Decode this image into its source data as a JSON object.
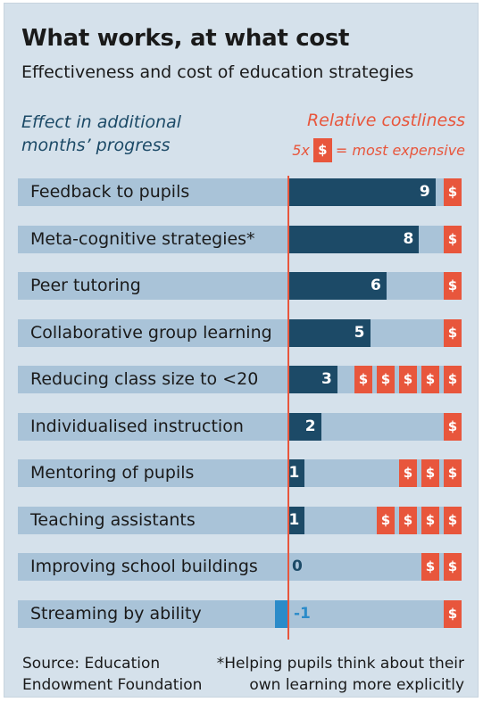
{
  "title": "What works, at what cost",
  "subtitle": "Effectiveness and cost of education strategies",
  "effect_label": "Effect in additional months’ progress",
  "cost_label": "Relative costliness",
  "cost_key": {
    "prefix": "5x",
    "symbol": "$",
    "suffix": "= most expensive"
  },
  "source": "Source: Education Endowment Foundation",
  "footnote_line1": "*Helping pupils think about their",
  "footnote_line2": "own learning more explicitly",
  "colors": {
    "positive_bar": "#1c4a67",
    "negative_bar": "#2b8bc9",
    "cost": "#e8563c",
    "row_band": "#a9c3d8",
    "background": "#d5e1eb"
  },
  "chart_data": {
    "type": "bar",
    "orientation": "horizontal",
    "title": "What works, at what cost",
    "xlabel": "Effect in additional months’ progress",
    "xlim": [
      -1.4,
      9.4
    ],
    "categories": [
      "Feedback to pupils",
      "Meta-cognitive strategies*",
      "Peer tutoring",
      "Collaborative group learning",
      "Reducing class size to <20",
      "Individualised instruction",
      "Mentoring of pupils",
      "Teaching assistants",
      "Improving school buildings",
      "Streaming by ability"
    ],
    "series": [
      {
        "name": "Effect in additional months’ progress",
        "values": [
          9,
          8,
          6,
          5,
          3,
          2,
          1,
          1,
          0,
          -1
        ]
      },
      {
        "name": "Relative costliness",
        "values": [
          1,
          1,
          1,
          1,
          5,
          1,
          3,
          4,
          2,
          1
        ]
      }
    ]
  }
}
